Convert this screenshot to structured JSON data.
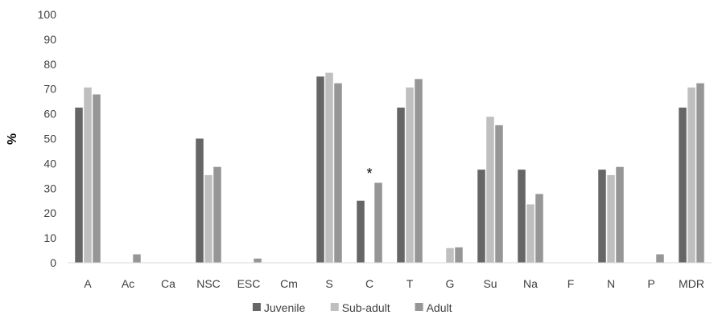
{
  "chart_data": {
    "type": "bar",
    "categories": [
      "A",
      "Ac",
      "Ca",
      "NSC",
      "ESC",
      "Cm",
      "S",
      "C",
      "T",
      "G",
      "Su",
      "Na",
      "F",
      "N",
      "P",
      "MDR"
    ],
    "series": [
      {
        "name": "Juvenile",
        "color": "#666666",
        "values": [
          62.5,
          0,
          0,
          50,
          0,
          0,
          75,
          25,
          62.5,
          0,
          37.5,
          37.5,
          0,
          37.5,
          0,
          62.5
        ]
      },
      {
        "name": "Sub-adult",
        "color": "#bfbfbf",
        "values": [
          70.6,
          0,
          0,
          35.3,
          0,
          0,
          76.5,
          0,
          70.6,
          5.9,
          58.8,
          23.5,
          0,
          35.3,
          0,
          70.6
        ]
      },
      {
        "name": "Adult",
        "color": "#969696",
        "values": [
          67.8,
          3.4,
          0,
          38.6,
          1.7,
          0,
          72.3,
          32.2,
          74,
          6.2,
          55.4,
          27.7,
          0,
          38.6,
          3.4,
          72.3
        ]
      }
    ],
    "ylabel": "%",
    "xlabel": "",
    "ylim": [
      0,
      100
    ],
    "yticks": [
      0,
      10,
      20,
      30,
      40,
      50,
      60,
      70,
      80,
      90,
      100
    ],
    "grid": false,
    "legend_position": "bottom",
    "annotations": [
      {
        "text": "*",
        "category": "C"
      }
    ]
  }
}
